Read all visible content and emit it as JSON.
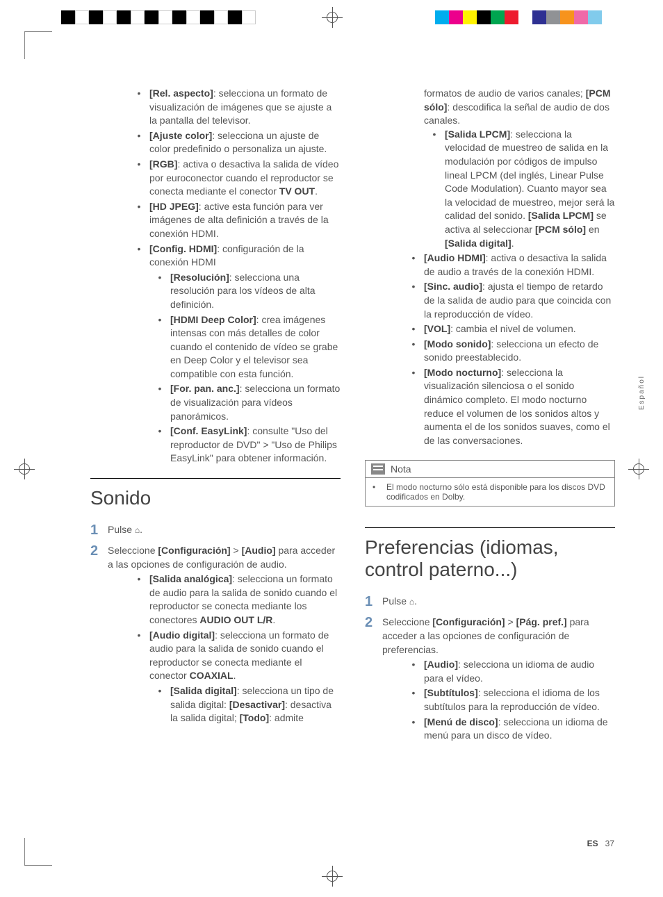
{
  "registration": {
    "left_colors": [
      "#000",
      "#fff",
      "#000",
      "#fff",
      "#000",
      "#fff",
      "#000",
      "#fff",
      "#000",
      "#fff",
      "#000",
      "#fff",
      "#000",
      "#fff"
    ],
    "right_colors": [
      "#00adee",
      "#ec008c",
      "#fff200",
      "#000",
      "#00a550",
      "#ed1b2e",
      "#fff",
      "#2e3092",
      "#909295",
      "#f7931d",
      "#ef6aa8",
      "#81cbec"
    ]
  },
  "col_left_top": [
    {
      "bold": "[Rel. aspecto]",
      "text": ": selecciona un formato de visualización de imágenes que se ajuste a la pantalla del televisor."
    },
    {
      "bold": "[Ajuste color]",
      "text": ": selecciona un ajuste de color predefinido o personaliza un ajuste."
    },
    {
      "bold": "[RGB]",
      "text": ": activa o desactiva la salida de vídeo por euroconector cuando el reproductor se conecta mediante el conector ",
      "bold2": "TV OUT",
      "text2": "."
    },
    {
      "bold": "[HD JPEG]",
      "text": ": active esta función para ver imágenes de alta definición a través de la conexión HDMI."
    },
    {
      "bold": "[Config. HDMI]",
      "text": ": configuración de la conexión HDMI"
    }
  ],
  "col_left_sub": [
    {
      "bold": "[Resolución]",
      "text": ": selecciona una resolución para los vídeos de alta definición."
    },
    {
      "bold": "[HDMI Deep Color]",
      "text": ": crea imágenes intensas con más detalles de color cuando el contenido de vídeo se grabe en Deep Color y el televisor sea compatible con esta función."
    },
    {
      "bold": "[For. pan. anc.]",
      "text": ": selecciona un formato de visualización para vídeos panorámicos."
    },
    {
      "bold": "[Conf. EasyLink]",
      "text": ": consulte \"Uso del reproductor de DVD\" > \"Uso de Philips EasyLink\" para obtener información."
    }
  ],
  "sonido": {
    "heading": "Sonido",
    "step1": "Pulse ",
    "step2_a": "Seleccione ",
    "step2_b": "[Configuración]",
    "step2_c": " > ",
    "step2_d": "[Audio]",
    "step2_e": " para acceder a las opciones de configuración de audio.",
    "items": [
      {
        "bold": "[Salida analógica]",
        "text": ": selecciona un formato de audio para la salida de sonido cuando el reproductor se conecta mediante los conectores ",
        "bold2": "AUDIO OUT L/R",
        "text2": "."
      },
      {
        "bold": "[Audio digital]",
        "text": ": selecciona un formato de audio para la salida de sonido cuando el reproductor se conecta mediante el conector ",
        "bold2": "COAXIAL",
        "text2": "."
      }
    ],
    "subitem": {
      "bold": "[Salida digital]",
      "text": ": selecciona un tipo de salida digital: ",
      "bold2": "[Desactivar]",
      "text2": ": desactiva la salida digital; ",
      "bold3": "[Todo]",
      "text3": ": admite"
    }
  },
  "col_right_top_cont": "formatos de audio de varios canales; ",
  "col_right_top_bold": "[PCM sólo]",
  "col_right_top_text": ": descodifica la señal de audio de dos canales.",
  "col_right_sub1": {
    "bold": "[Salida LPCM]",
    "text": ": selecciona la velocidad de muestreo de salida en la modulación por códigos de impulso lineal LPCM (del inglés, Linear Pulse Code Modulation). Cuanto mayor sea la velocidad de muestreo, mejor será la calidad del sonido. ",
    "bold2": "[Salida LPCM]",
    "text2": " se activa al seleccionar ",
    "bold3": "[PCM sólo]",
    "text3": " en ",
    "bold4": "[Salida digital]",
    "text4": "."
  },
  "col_right_items": [
    {
      "bold": "[Audio HDMI]",
      "text": ": activa o desactiva la salida de audio a través de la conexión HDMI."
    },
    {
      "bold": "[Sinc. audio]",
      "text": ": ajusta el tiempo de retardo de la salida de audio para que coincida con la reproducción de vídeo."
    },
    {
      "bold": "[VOL]",
      "text": ": cambia el nivel de volumen."
    },
    {
      "bold": "[Modo sonido]",
      "text": ": selecciona un efecto de sonido preestablecido."
    },
    {
      "bold": "[Modo nocturno]",
      "text": ": selecciona la visualización silenciosa o el sonido dinámico completo. El modo nocturno reduce el volumen de los sonidos altos y aumenta el de los sonidos suaves, como el de las conversaciones."
    }
  ],
  "note": {
    "title": "Nota",
    "body": "El modo nocturno sólo está disponible para los discos DVD codificados en Dolby."
  },
  "pref": {
    "heading": "Preferencias (idiomas, control paterno...)",
    "step1": "Pulse ",
    "step2_a": "Seleccione ",
    "step2_b": "[Configuración]",
    "step2_c": " > ",
    "step2_d": "[Pág. pref.]",
    "step2_e": " para acceder a las opciones de configuración de preferencias.",
    "items": [
      {
        "bold": "[Audio]",
        "text": ": selecciona un idioma de audio para el vídeo."
      },
      {
        "bold": "[Subtítulos]",
        "text": ": selecciona el idioma de los subtítulos para la reproducción de vídeo."
      },
      {
        "bold": "[Menú de disco]",
        "text": ": selecciona un idioma de menú para un disco de vídeo."
      }
    ]
  },
  "side_tab": "Español",
  "footer": {
    "lang": "ES",
    "page": "37"
  }
}
